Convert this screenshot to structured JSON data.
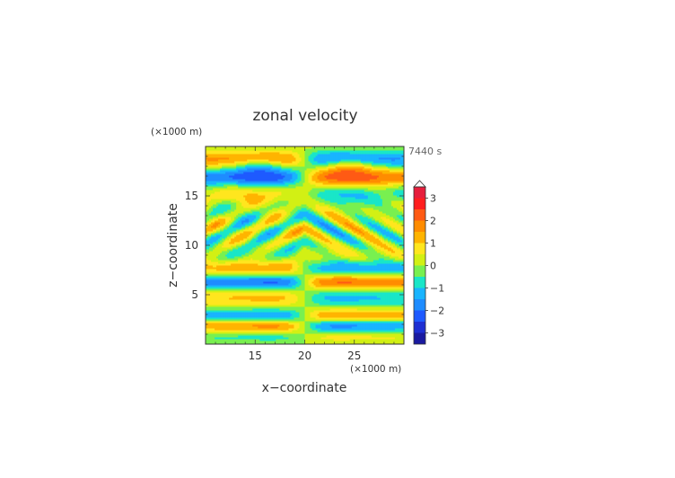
{
  "chart_data": {
    "type": "heatmap",
    "title": "zonal velocity",
    "xlabel": "x−coordinate",
    "ylabel": "z−coordinate",
    "x_unit": "(×1000 m)",
    "y_unit": "(×1000 m)",
    "time_label": "7440 s",
    "xlim": [
      10,
      30
    ],
    "ylim": [
      0,
      20
    ],
    "x_ticks": [
      15,
      20,
      25
    ],
    "y_ticks": [
      5,
      10,
      15
    ],
    "x_tick_labels": [
      "15",
      "20",
      "25"
    ],
    "y_tick_labels": [
      "5",
      "10",
      "15"
    ],
    "colorbar": {
      "levels": [
        -3.5,
        -3,
        -2.5,
        -2,
        -1.5,
        -1,
        -0.5,
        0,
        0.5,
        1,
        1.5,
        2,
        2.5,
        3,
        3.5
      ],
      "colors": [
        "#1a1aa0",
        "#1e2fd2",
        "#1e5aff",
        "#1e8cff",
        "#19b4ff",
        "#19e6c8",
        "#78f050",
        "#d2f014",
        "#ffe61e",
        "#ffb400",
        "#ff8c00",
        "#ff5a14",
        "#ff1e1e",
        "#e61e3c",
        "#f5a0a0"
      ],
      "tick_values": [
        3,
        2,
        1,
        0,
        -1,
        -2,
        -3
      ],
      "tick_labels": [
        "3",
        "2",
        "1",
        "0",
        "−1",
        "−2",
        "−3"
      ],
      "over_color": "#ffffff"
    }
  }
}
